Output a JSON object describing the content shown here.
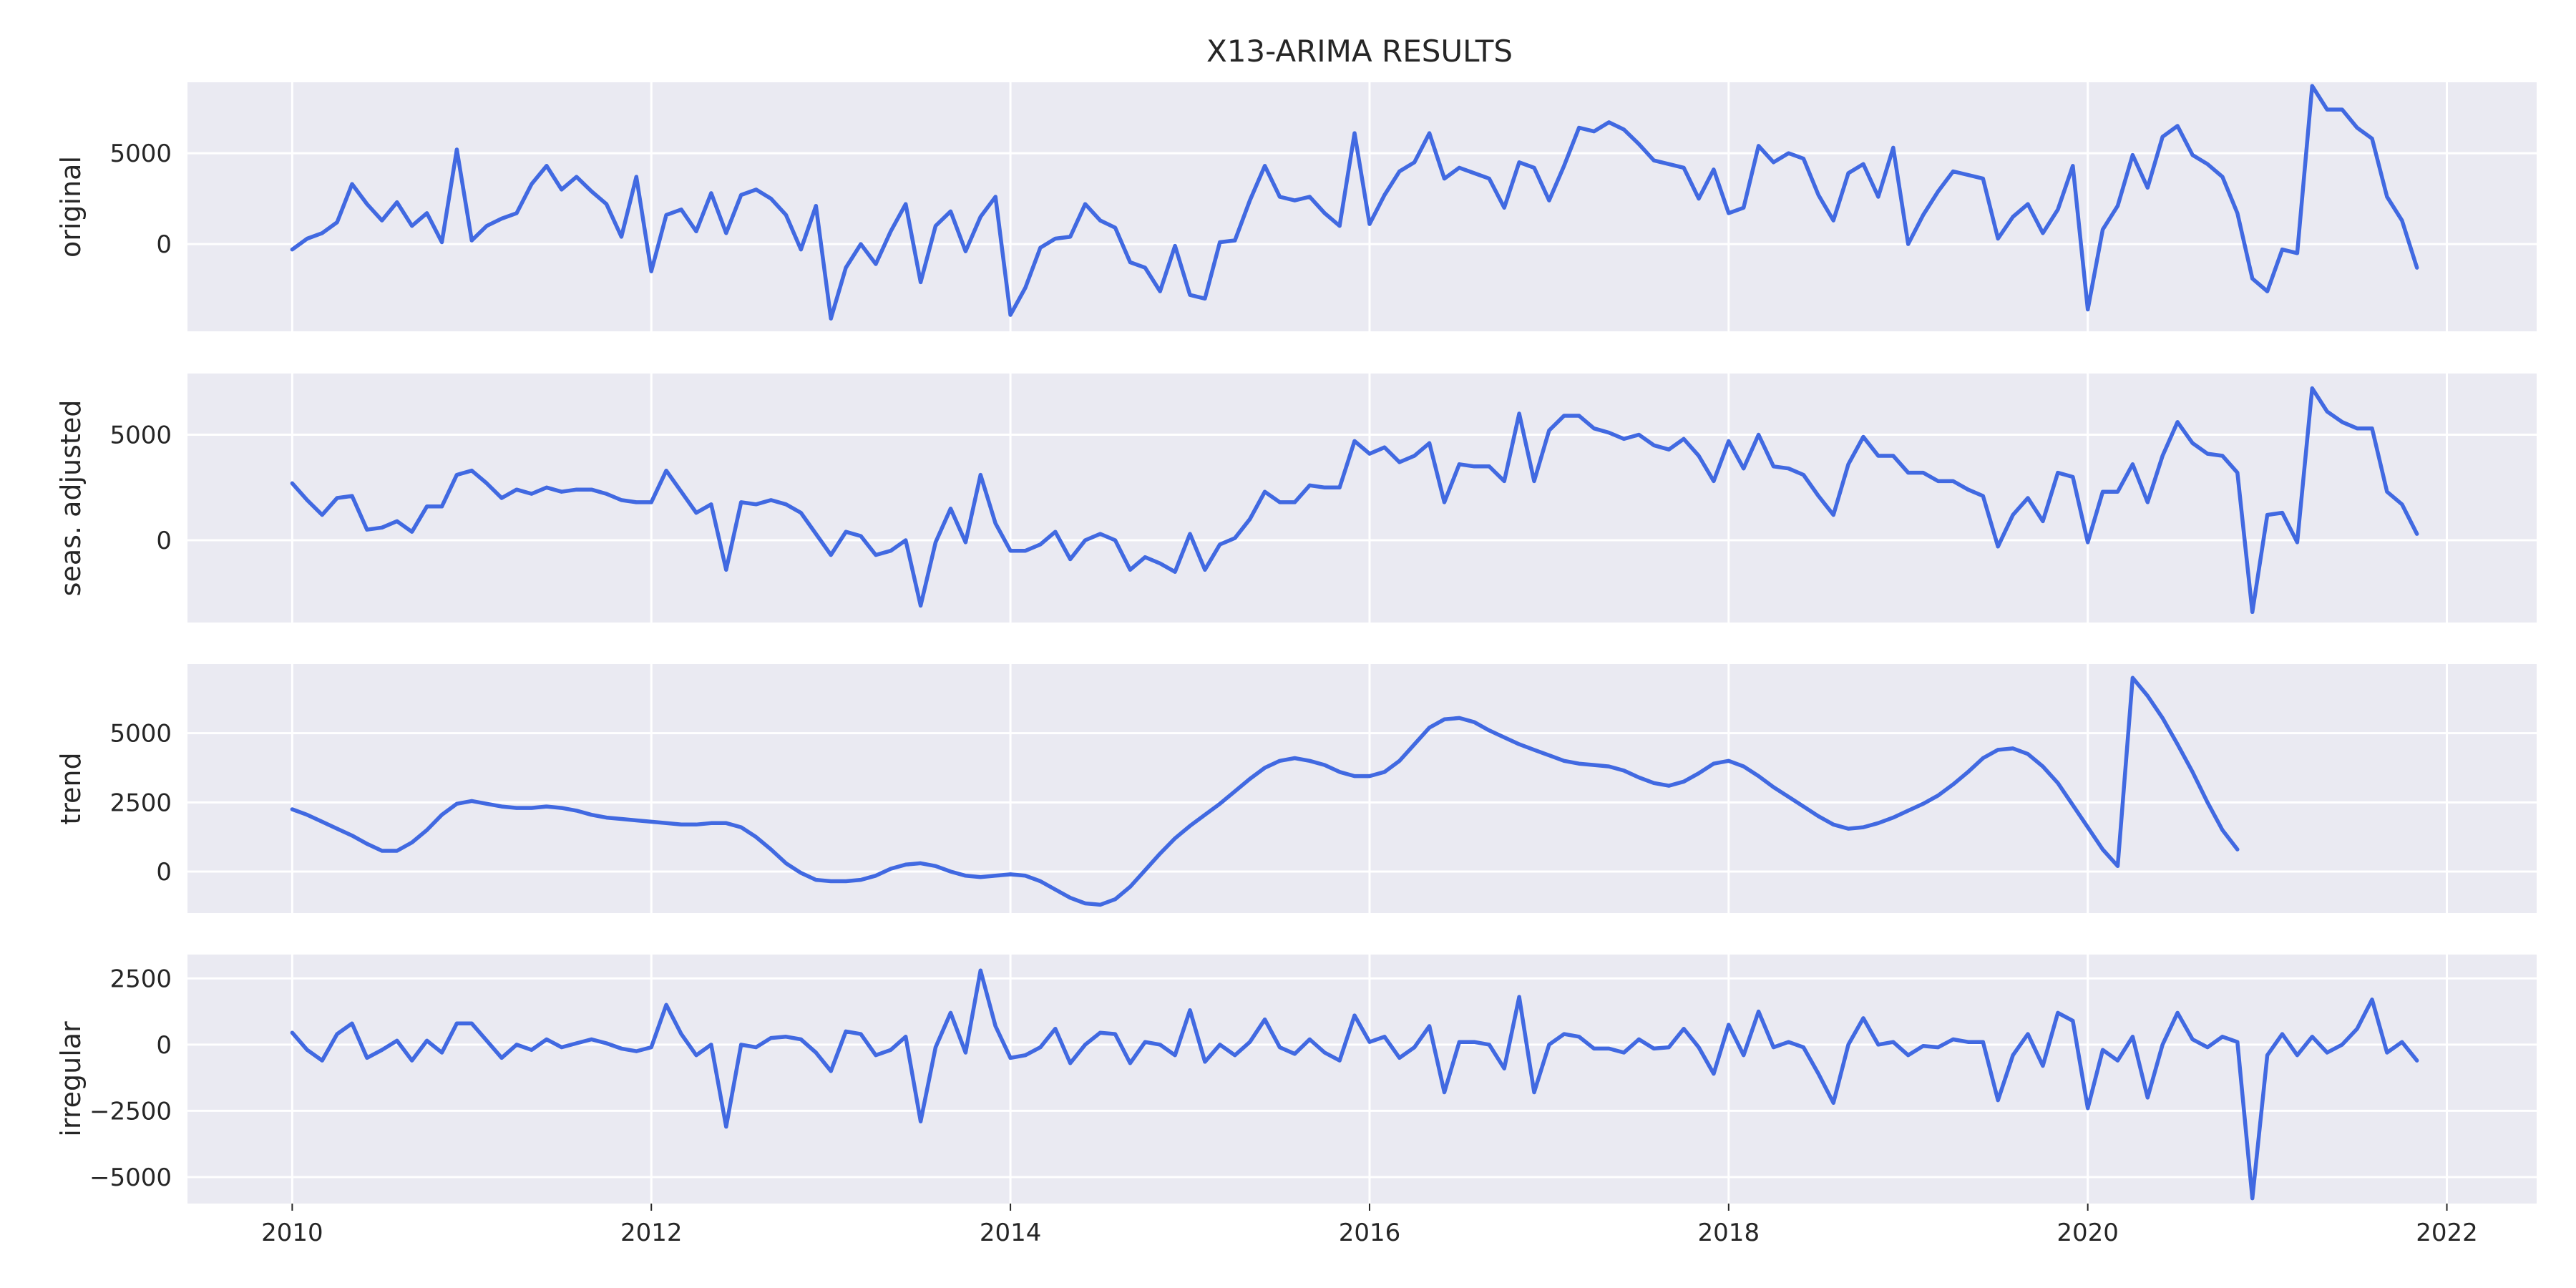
{
  "chart_data": {
    "type": "line",
    "title": "X13-ARIMA RESULTS",
    "x_start": "2010-01",
    "x_frequency": "monthly",
    "x_ticks": [
      "2010",
      "2012",
      "2014",
      "2016",
      "2018",
      "2020",
      "2022"
    ],
    "xlim": [
      "2009-06",
      "2022-07"
    ],
    "grid": true,
    "series": [
      {
        "name": "original",
        "ylabel": "original",
        "ylim": [
          -4800,
          8900
        ],
        "yticks": [
          0,
          5000
        ],
        "ytick_labels": [
          "0",
          "5000"
        ],
        "color": "#4169e1",
        "values": [
          -300,
          300,
          600,
          1200,
          3300,
          2200,
          1300,
          2300,
          1000,
          1700,
          100,
          5200,
          200,
          1000,
          1400,
          1700,
          3300,
          4300,
          3000,
          3700,
          2900,
          2200,
          400,
          3700,
          -1500,
          1600,
          1900,
          700,
          2800,
          600,
          2700,
          3000,
          2500,
          1600,
          -300,
          2100,
          -4100,
          -1300,
          0,
          -1100,
          700,
          2200,
          -2100,
          1000,
          1800,
          -400,
          1500,
          2600,
          -3900,
          -2400,
          -200,
          300,
          400,
          2200,
          1300,
          900,
          -1000,
          -1300,
          -2600,
          -100,
          -2800,
          -3000,
          100,
          200,
          2400,
          4300,
          2600,
          2400,
          2600,
          1700,
          1000,
          6100,
          1100,
          2700,
          4000,
          4500,
          6100,
          3600,
          4200,
          3900,
          3600,
          2000,
          4500,
          4200,
          2400,
          4300,
          6400,
          6200,
          6700,
          6300,
          5500,
          4600,
          4400,
          4200,
          2500,
          4100,
          1700,
          2000,
          5400,
          4500,
          5000,
          4700,
          2700,
          1300,
          3900,
          4400,
          2600,
          5300,
          0,
          1600,
          2900,
          4000,
          3800,
          3600,
          300,
          1500,
          2200,
          600,
          1900,
          4300,
          -3600,
          800,
          2100,
          4900,
          3100,
          5900,
          6500,
          4900,
          4400,
          3700,
          1700,
          -1900,
          -2600,
          -300,
          -500,
          8700,
          7400,
          7400,
          6400,
          5800,
          2600,
          1300,
          -1300
        ]
      },
      {
        "name": "seas. adjusted",
        "ylabel": "seas. adjusted",
        "ylim": [
          -3900,
          7900
        ],
        "yticks": [
          0,
          5000
        ],
        "ytick_labels": [
          "0",
          "5000"
        ],
        "color": "#4169e1",
        "values": [
          2700,
          1900,
          1200,
          2000,
          2100,
          500,
          600,
          900,
          400,
          1600,
          1600,
          3100,
          3300,
          2700,
          2000,
          2400,
          2200,
          2500,
          2300,
          2400,
          2400,
          2200,
          1900,
          1800,
          1800,
          3300,
          2300,
          1300,
          1700,
          -1400,
          1800,
          1700,
          1900,
          1700,
          1300,
          300,
          -700,
          400,
          200,
          -700,
          -500,
          0,
          -3100,
          -100,
          1500,
          -100,
          3100,
          800,
          -500,
          -500,
          -200,
          400,
          -900,
          0,
          300,
          0,
          -1400,
          -800,
          -1100,
          -1500,
          300,
          -1400,
          -200,
          100,
          1000,
          2300,
          1800,
          1800,
          2600,
          2500,
          2500,
          4700,
          4100,
          4400,
          3700,
          4000,
          4600,
          1800,
          3600,
          3500,
          3500,
          2800,
          6000,
          2800,
          5200,
          5900,
          5900,
          5300,
          5100,
          4800,
          5000,
          4500,
          4300,
          4800,
          4000,
          2800,
          4700,
          3400,
          5000,
          3500,
          3400,
          3100,
          2100,
          1200,
          3600,
          4900,
          4000,
          4000,
          3200,
          3200,
          2800,
          2800,
          2400,
          2100,
          -300,
          1200,
          2000,
          900,
          3200,
          3000,
          -100,
          2300,
          2300,
          3600,
          1800,
          4000,
          5600,
          4600,
          4100,
          4000,
          3200,
          -3400,
          1200,
          1300,
          -100,
          7200,
          6100,
          5600,
          5300,
          5300,
          2300,
          1700,
          300
        ]
      },
      {
        "name": "trend",
        "ylabel": "trend",
        "ylim": [
          -1500,
          7500
        ],
        "yticks": [
          0,
          2500,
          5000
        ],
        "ytick_labels": [
          "0",
          "2500",
          "5000"
        ],
        "color": "#4169e1",
        "values": [
          2250,
          2050,
          1800,
          1550,
          1300,
          1000,
          750,
          750,
          1050,
          1500,
          2050,
          2450,
          2550,
          2450,
          2350,
          2300,
          2300,
          2350,
          2300,
          2200,
          2050,
          1950,
          1900,
          1850,
          1800,
          1750,
          1700,
          1700,
          1750,
          1750,
          1600,
          1250,
          800,
          300,
          -50,
          -300,
          -350,
          -350,
          -300,
          -150,
          100,
          250,
          300,
          200,
          0,
          -150,
          -200,
          -150,
          -100,
          -150,
          -350,
          -650,
          -950,
          -1150,
          -1200,
          -1000,
          -550,
          50,
          650,
          1200,
          1650,
          2050,
          2450,
          2900,
          3350,
          3750,
          4000,
          4100,
          4000,
          3850,
          3600,
          3450,
          3450,
          3600,
          4000,
          4600,
          5200,
          5500,
          5550,
          5400,
          5100,
          4850,
          4600,
          4400,
          4200,
          4000,
          3900,
          3850,
          3800,
          3650,
          3400,
          3200,
          3100,
          3250,
          3550,
          3900,
          4000,
          3800,
          3450,
          3050,
          2700,
          2350,
          2000,
          1700,
          1550,
          1600,
          1750,
          1950,
          2200,
          2450,
          2750,
          3150,
          3600,
          4100,
          4400,
          4450,
          4250,
          3800,
          3200,
          2400,
          1600,
          800,
          200,
          7000,
          6350,
          5550,
          4600,
          3600,
          2500,
          1500,
          800
        ]
      },
      {
        "name": "irregular",
        "ylabel": "irregular",
        "ylim": [
          -6000,
          3400
        ],
        "yticks": [
          -5000,
          -2500,
          0,
          2500
        ],
        "ytick_labels": [
          "−5000",
          "−2500",
          "0",
          "2500"
        ],
        "color": "#4169e1",
        "values": [
          450,
          -200,
          -600,
          400,
          800,
          -500,
          -200,
          150,
          -600,
          150,
          -300,
          800,
          800,
          150,
          -500,
          0,
          -200,
          200,
          -100,
          50,
          200,
          50,
          -150,
          -250,
          -100,
          1500,
          400,
          -400,
          0,
          -3100,
          0,
          -100,
          250,
          300,
          200,
          -300,
          -1000,
          500,
          400,
          -400,
          -200,
          300,
          -2900,
          -100,
          1200,
          -300,
          2800,
          700,
          -500,
          -400,
          -100,
          600,
          -700,
          0,
          450,
          400,
          -700,
          100,
          0,
          -400,
          1300,
          -650,
          0,
          -400,
          100,
          950,
          -100,
          -350,
          200,
          -300,
          -600,
          1100,
          100,
          300,
          -500,
          -100,
          700,
          -1800,
          100,
          100,
          0,
          -900,
          1800,
          -1800,
          0,
          400,
          300,
          -150,
          -150,
          -300,
          200,
          -150,
          -100,
          600,
          -100,
          -1100,
          750,
          -400,
          1250,
          -100,
          100,
          -100,
          -1100,
          -2200,
          0,
          1000,
          0,
          100,
          -400,
          -50,
          -100,
          200,
          100,
          100,
          -2100,
          -400,
          400,
          -800,
          1200,
          900,
          -2400,
          -200,
          -600,
          300,
          -2000,
          0,
          1200,
          200,
          -100,
          300,
          100,
          -5800,
          -400,
          400,
          -400,
          300,
          -300,
          0,
          600,
          1700,
          -300,
          100,
          -600
        ]
      }
    ]
  }
}
